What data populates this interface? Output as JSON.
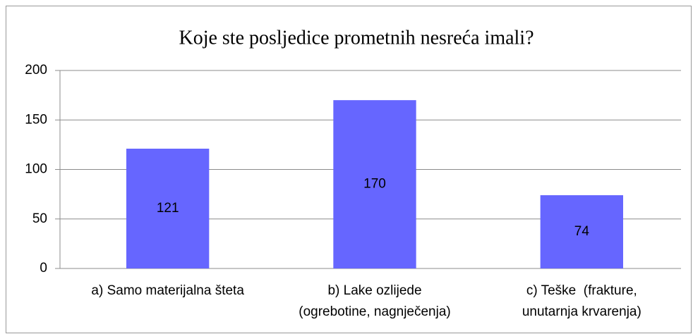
{
  "chart_data": {
    "type": "bar",
    "title": "Koje ste posljedice prometnih nesreća imali?",
    "categories": [
      "a) Samo materijalna šteta",
      "b) Lake ozlijede\n(ogrebotine, nagnječenja)",
      "c) Teške  (frakture,\nunutarnja krvarenja)"
    ],
    "values": [
      121,
      170,
      74
    ],
    "color": "#6666ff",
    "ylim": [
      0,
      200
    ],
    "yticks": [
      0,
      50,
      100,
      150,
      200
    ],
    "grid": true
  }
}
